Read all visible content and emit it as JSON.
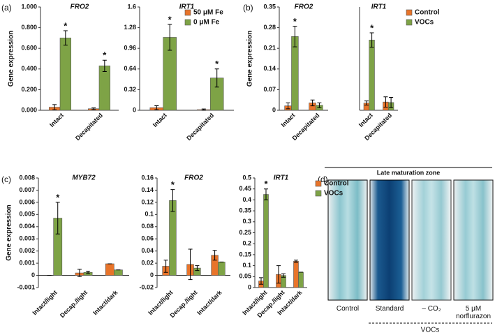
{
  "panels": [
    "(a)",
    "(b)",
    "(c)",
    "(d)"
  ],
  "chart_data": [
    {
      "type": "bar",
      "title": "FRO2",
      "ylabel": "Gene expression",
      "categories": [
        "Intact",
        "Decapitated"
      ],
      "series": [
        {
          "name": "50 μM Fe",
          "color": "#e8742a",
          "values": [
            0.03,
            0.015
          ],
          "errors": [
            0.025,
            0.008
          ],
          "significance": [
            null,
            null
          ]
        },
        {
          "name": "0 μM Fe",
          "color": "#7ea346",
          "values": [
            0.7,
            0.43
          ],
          "errors": [
            0.07,
            0.055
          ],
          "significance": [
            "*",
            "*"
          ]
        }
      ],
      "ylim": [
        0,
        1
      ],
      "yticks": [
        {
          "value": 0,
          "label": "0.000"
        },
        {
          "value": 0.2,
          "label": "0.200"
        },
        {
          "value": 0.4,
          "label": "0.400"
        },
        {
          "value": 0.6,
          "label": "0.600"
        },
        {
          "value": 0.8,
          "label": "0.800"
        },
        {
          "value": 1,
          "label": "1.000"
        }
      ]
    },
    {
      "type": "bar",
      "title": "IRT1",
      "categories": [
        "Intact",
        "Decapitated"
      ],
      "legend": "upper right",
      "series": [
        {
          "name": "50 μM Fe",
          "color": "#e8742a",
          "values": [
            0.04,
            0.01
          ],
          "errors": [
            0.03,
            0.01
          ],
          "significance": [
            null,
            null
          ]
        },
        {
          "name": "0 μM Fe",
          "color": "#7ea346",
          "values": [
            1.13,
            0.5
          ],
          "errors": [
            0.2,
            0.14
          ],
          "significance": [
            "*",
            "*"
          ]
        }
      ],
      "ylim": [
        0,
        1.6
      ],
      "yticks": [
        0,
        0.32,
        0.64,
        0.96,
        1.28,
        1.6
      ]
    },
    {
      "type": "bar",
      "title": "FRO2",
      "ylabel": "Gene expression",
      "categories": [
        "Intact",
        "Decapitated"
      ],
      "series": [
        {
          "name": "Control",
          "color": "#e8742a",
          "values": [
            0.015,
            0.025
          ],
          "errors": [
            0.01,
            0.01
          ],
          "significance": [
            null,
            null
          ]
        },
        {
          "name": "VOCs",
          "color": "#7ea346",
          "values": [
            0.25,
            0.017
          ],
          "errors": [
            0.035,
            0.008
          ],
          "significance": [
            "*",
            null
          ]
        }
      ],
      "ylim": [
        0,
        0.35
      ],
      "yticks": [
        0,
        0.07,
        0.14,
        0.21,
        0.28,
        0.35
      ]
    },
    {
      "type": "bar",
      "title": "IRT1",
      "categories": [
        "Intact",
        "Decapitated"
      ],
      "legend": "right",
      "series": [
        {
          "name": "Control",
          "color": "#e8742a",
          "values": [
            0.07,
            0.08
          ],
          "errors": [
            0.02,
            0.05
          ],
          "significance": [
            null,
            null
          ]
        },
        {
          "name": "VOCs",
          "color": "#7ea346",
          "values": [
            0.68,
            0.075
          ],
          "errors": [
            0.07,
            0.05
          ],
          "significance": [
            "*",
            null
          ]
        }
      ],
      "ylim": [
        0,
        1
      ]
    },
    {
      "type": "bar",
      "title": "MYB72",
      "ylabel": "Gene expression",
      "categories": [
        "Intact/light",
        "Decap./light",
        "Intact/dark"
      ],
      "series": [
        {
          "name": "Control",
          "color": "#e8742a",
          "values": [
            0,
            0.0002,
            0.00095
          ],
          "errors": [
            0,
            0.0003,
            0
          ],
          "significance": [
            null,
            null,
            null
          ]
        },
        {
          "name": "VOCs",
          "color": "#7ea346",
          "values": [
            0.0047,
            0.00025,
            0.00045
          ],
          "errors": [
            0.0013,
            0.0001,
            0
          ],
          "significance": [
            "*",
            null,
            null
          ]
        }
      ],
      "ylim": [
        -0.001,
        0.008
      ],
      "yticks": [
        -0.001,
        0,
        0.001,
        0.002,
        0.003,
        0.004,
        0.005,
        0.006,
        0.007,
        0.008
      ]
    },
    {
      "type": "bar",
      "title": "FRO2",
      "categories": [
        "Intact/light",
        "Decap./light",
        "Intact/dark"
      ],
      "series": [
        {
          "name": "Control",
          "color": "#e8742a",
          "values": [
            0.015,
            0.018,
            0.033
          ],
          "errors": [
            0.01,
            0.025,
            0.008
          ],
          "significance": [
            null,
            null,
            null
          ]
        },
        {
          "name": "VOCs",
          "color": "#7ea346",
          "values": [
            0.123,
            0.012,
            0.022
          ],
          "errors": [
            0.018,
            0.004,
            0
          ],
          "significance": [
            "*",
            null,
            null
          ]
        }
      ],
      "ylim": [
        -0.02,
        0.16
      ],
      "yticks": [
        -0.02,
        0,
        0.02,
        0.04,
        0.06,
        0.08,
        0.1,
        0.12,
        0.14,
        0.16
      ]
    },
    {
      "type": "bar",
      "title": "IRT1",
      "categories": [
        "Intact/light",
        "Decap./light",
        "Intact/dark"
      ],
      "legend": "right",
      "series": [
        {
          "name": "Control",
          "color": "#e8742a",
          "values": [
            0.03,
            0.06,
            0.12
          ],
          "errors": [
            0.015,
            0.04,
            0.005
          ],
          "significance": [
            null,
            null,
            null
          ]
        },
        {
          "name": "VOCs",
          "color": "#7ea346",
          "values": [
            0.425,
            0.055,
            0.07
          ],
          "errors": [
            0.025,
            0.008,
            0
          ],
          "significance": [
            "*",
            null,
            null
          ]
        }
      ],
      "ylim": [
        0,
        0.5
      ],
      "yticks": [
        0,
        0.05,
        0.1,
        0.15,
        0.2,
        0.25,
        0.3,
        0.35,
        0.4,
        0.45,
        0.5
      ]
    }
  ],
  "panel_d": {
    "title": "Late maturation zone",
    "images": [
      "Control",
      "Standard",
      "– CO₂",
      "5 μM norflurazon"
    ],
    "group_label": "VOCs"
  }
}
